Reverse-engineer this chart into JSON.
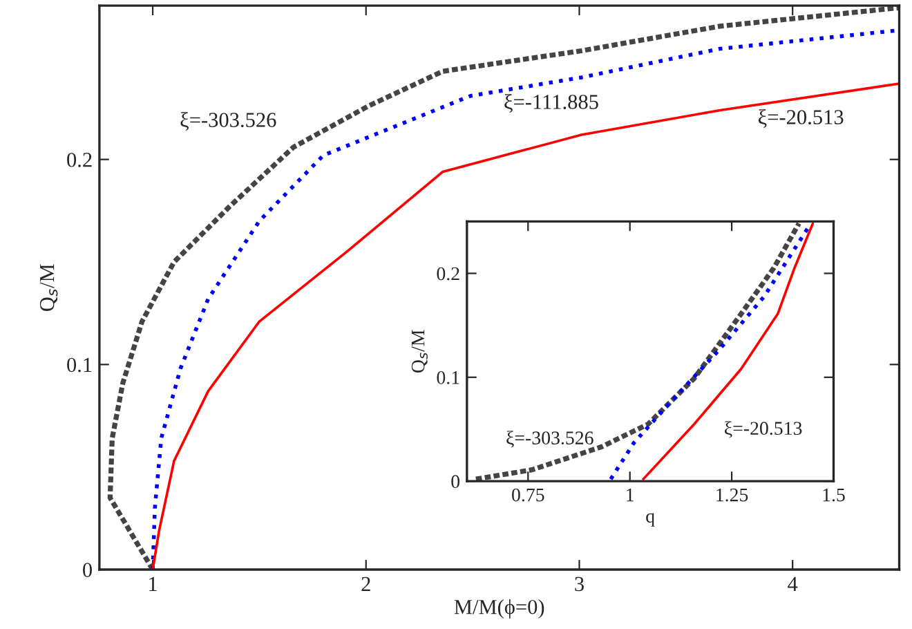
{
  "chart_data": [
    {
      "type": "line",
      "xlabel": "M/M(ϕ=0)",
      "ylabel": "Q$_{s}$/M",
      "xlim": [
        0.75,
        4.5
      ],
      "ylim": [
        0,
        0.275
      ],
      "xticks": [
        1,
        2,
        3,
        4
      ],
      "yticks": [
        0,
        0.1,
        0.2
      ],
      "grid": false,
      "legend": false,
      "series": [
        {
          "name": "ξ=-303.526",
          "color": "#444444",
          "line_style": "dashed",
          "x": [
            1,
            0.8,
            0.81,
            0.86,
            0.95,
            1.1,
            1.36,
            1.66,
            2.01,
            2.36,
            3.01,
            3.66,
            4.5
          ],
          "values": [
            0,
            0.035,
            0.064,
            0.091,
            0.121,
            0.15,
            0.177,
            0.206,
            0.226,
            0.243,
            0.253,
            0.265,
            0.274
          ]
        },
        {
          "name": "ξ=-111.885",
          "color": "#0000ff",
          "line_style": "dotted",
          "x": [
            1,
            1.01,
            1.04,
            1.13,
            1.26,
            1.5,
            1.8,
            2.49,
            3.01,
            3.66,
            4.5
          ],
          "values": [
            0,
            0.03,
            0.064,
            0.098,
            0.132,
            0.17,
            0.202,
            0.231,
            0.24,
            0.254,
            0.263
          ]
        },
        {
          "name": "ξ=-20.513",
          "color": "#ff0000",
          "line_style": "solid",
          "x": [
            1,
            1.03,
            1.1,
            1.26,
            1.5,
            1.91,
            2.36,
            3.01,
            3.66,
            4.5
          ],
          "values": [
            0,
            0.019,
            0.053,
            0.087,
            0.121,
            0.155,
            0.194,
            0.212,
            0.224,
            0.237
          ]
        }
      ]
    },
    {
      "type": "line",
      "xlabel": "q",
      "ylabel": "Q$_{s}$/M",
      "xlim": [
        0.6,
        1.5
      ],
      "ylim": [
        0,
        0.25
      ],
      "xticks": [
        0.75,
        1,
        1.25,
        1.5
      ],
      "yticks": [
        0,
        0.1,
        0.2
      ],
      "grid": false,
      "legend": false,
      "series": [
        {
          "name": "ξ=-303.526",
          "color": "#444444",
          "line_style": "dashed",
          "x": [
            0.622,
            0.76,
            0.93,
            1.045,
            1.158,
            1.273,
            1.353,
            1.415
          ],
          "values": [
            0.002,
            0.011,
            0.033,
            0.055,
            0.099,
            0.161,
            0.205,
            0.248
          ]
        },
        {
          "color": "#0000ff",
          "line_style": "dotted",
          "x": [
            0.953,
            1.01,
            1.102,
            1.216,
            1.33,
            1.444
          ],
          "values": [
            0.002,
            0.037,
            0.077,
            0.125,
            0.178,
            0.248
          ]
        },
        {
          "name": "ξ=-20.513",
          "color": "#ff0000",
          "line_style": "solid",
          "x": [
            1.033,
            1.158,
            1.273,
            1.363,
            1.404,
            1.449
          ],
          "values": [
            0.002,
            0.055,
            0.108,
            0.161,
            0.205,
            0.248
          ]
        }
      ]
    }
  ]
}
